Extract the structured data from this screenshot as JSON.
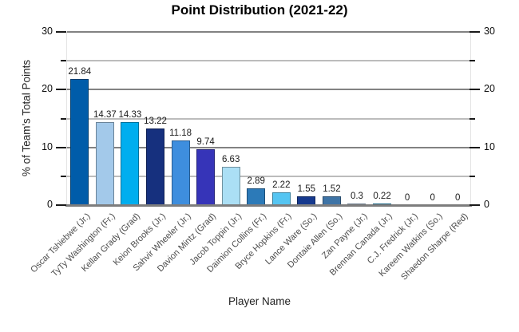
{
  "chart_data": {
    "type": "bar",
    "title": "Point Distribution (2021-22)",
    "xlabel": "Player Name",
    "ylabel": "% of Team's Total Points",
    "ylim": [
      0,
      30
    ],
    "yticks_major": [
      0,
      10,
      20,
      30
    ],
    "yticks_minor": [
      5,
      15,
      25
    ],
    "grid": "horizontal-on",
    "legend_position": "none",
    "right_axis_mirrored": true,
    "categories": [
      "Oscar Tshiebwe (Jr.)",
      "TyTy Washington (Fr.)",
      "Kellan Grady (Grad)",
      "Keion Brooks (Jr.)",
      "Sahvir Wheeler (Jr.)",
      "Davion Mintz (Grad)",
      "Jacob Toppin (Jr.)",
      "Daimion Collins (Fr.)",
      "Bryce Hopkins (Fr.)",
      "Lance Ware (So.)",
      "Dontaie Allen (So.)",
      "Zan Payne (Jr.)",
      "Brennan Canada (Jr.)",
      "C.J. Fredrick (Jr.)",
      "Kareem Watkins (So.)",
      "Shaedon Sharpe (Red)"
    ],
    "values": [
      21.84,
      14.37,
      14.33,
      13.22,
      11.18,
      9.74,
      6.63,
      2.89,
      2.22,
      1.55,
      1.52,
      0.3,
      0.22,
      0,
      0,
      0
    ],
    "value_labels": [
      "21.84",
      "14.37",
      "14.33",
      "13.22",
      "11.18",
      "9.74",
      "6.63",
      "2.89",
      "2.22",
      "1.55",
      "1.52",
      "0.3",
      "0.22",
      "0",
      "0",
      "0"
    ],
    "bar_colors": [
      "#005CA9",
      "#A3C9EA",
      "#00AEEF",
      "#16307E",
      "#3E8EDE",
      "#3634B8",
      "#ABDFF5",
      "#2C7AB8",
      "#55C5F2",
      "#16398E",
      "#3E74A6",
      "#A9C3DC",
      "#2097C6",
      "#005CA9",
      "#A3C9EA",
      "#00AEEF"
    ],
    "colors": {
      "grid_major": "#828282",
      "grid_minor": "#bcbcbc",
      "axis_line": "#7d7d7d",
      "tick_mark": "#1a1a1a",
      "title_text": "#000000",
      "tick_text": "#0d0d0d",
      "category_text": "#4d4d4d",
      "background": "#ffffff"
    }
  }
}
